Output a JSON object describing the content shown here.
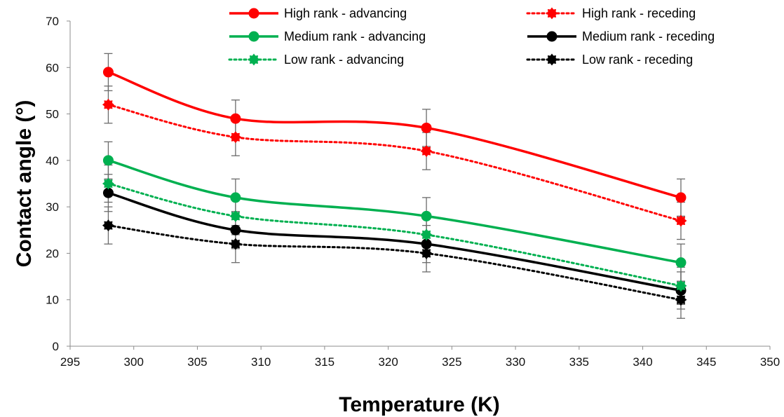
{
  "chart_data": {
    "type": "line",
    "xlabel": "Temperature  (K)",
    "ylabel": "Contact angle (°)",
    "xlim": [
      295,
      350
    ],
    "ylim": [
      0,
      70
    ],
    "x_ticks": [
      295,
      300,
      305,
      310,
      315,
      320,
      325,
      330,
      335,
      340,
      345,
      350
    ],
    "y_ticks": [
      0,
      10,
      20,
      30,
      40,
      50,
      60,
      70
    ],
    "x": [
      298,
      308,
      323,
      343
    ],
    "grid": false,
    "legend_position": "top",
    "series": [
      {
        "name": "High rank - advancing",
        "values": [
          59,
          49,
          47,
          32
        ],
        "error": [
          4,
          4,
          4,
          4
        ],
        "color": "#ff0000",
        "style": "solid",
        "marker": "circle"
      },
      {
        "name": "High rank - receding",
        "values": [
          52,
          45,
          42,
          27
        ],
        "error": [
          4,
          4,
          4,
          4
        ],
        "color": "#ff0000",
        "style": "dotted",
        "marker": "star"
      },
      {
        "name": "Medium rank - advancing",
        "values": [
          40,
          32,
          28,
          18
        ],
        "error": [
          4,
          4,
          4,
          4
        ],
        "color": "#00b050",
        "style": "solid",
        "marker": "circle"
      },
      {
        "name": "Medium rank - receding",
        "values": [
          33,
          25,
          22,
          12
        ],
        "error": [
          4,
          4,
          4,
          4
        ],
        "color": "#000000",
        "style": "solid",
        "marker": "circle"
      },
      {
        "name": "Low rank - advancing",
        "values": [
          35,
          28,
          24,
          13
        ],
        "error": [
          4,
          4,
          4,
          4
        ],
        "color": "#00b050",
        "style": "dotted",
        "marker": "star"
      },
      {
        "name": "Low rank - receding",
        "values": [
          26,
          22,
          20,
          10
        ],
        "error": [
          4,
          4,
          4,
          4
        ],
        "color": "#000000",
        "style": "dotted",
        "marker": "star"
      }
    ]
  }
}
